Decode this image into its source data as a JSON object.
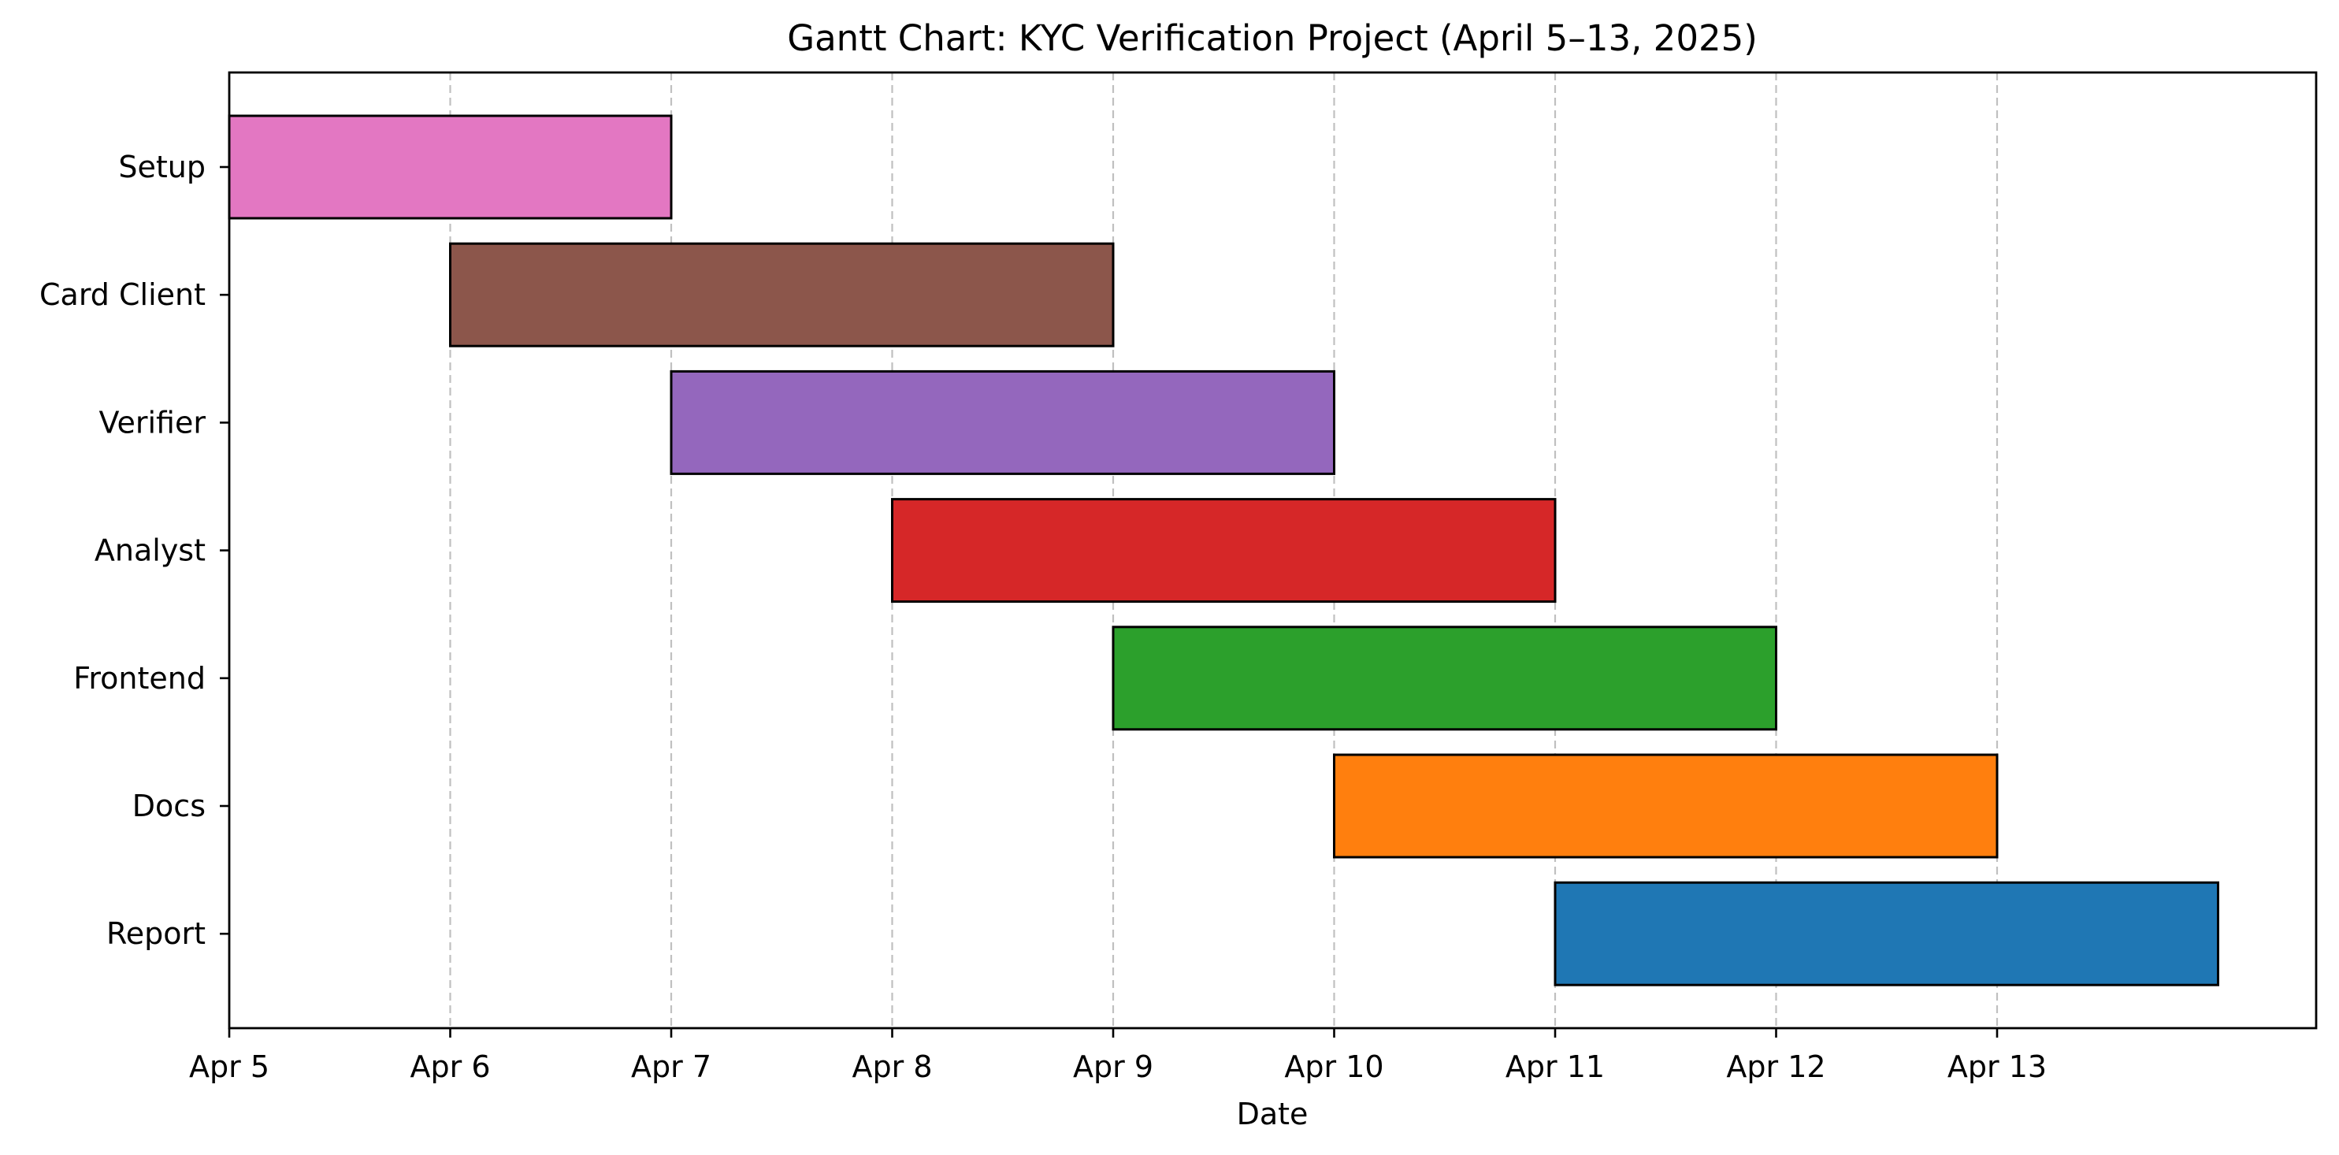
{
  "chart_data": {
    "type": "gantt",
    "title": "Gantt Chart: KYC Verification Project (April 5–13, 2025)",
    "xlabel": "Date",
    "ylabel": "",
    "x_ticks": [
      "Apr 5",
      "Apr 6",
      "Apr 7",
      "Apr 8",
      "Apr 9",
      "Apr 10",
      "Apr 11",
      "Apr 12",
      "Apr 13"
    ],
    "xlim": [
      "2025-04-05",
      "2025-04-15T11:00"
    ],
    "grid": "vertical dashed at day ticks",
    "tasks": [
      {
        "name": "Setup",
        "start": "2025-04-05",
        "end": "2025-04-07",
        "color": "#e377c2"
      },
      {
        "name": "Card Client",
        "start": "2025-04-06",
        "end": "2025-04-09",
        "color": "#8c564b"
      },
      {
        "name": "Verifier",
        "start": "2025-04-07",
        "end": "2025-04-10",
        "color": "#9467bd"
      },
      {
        "name": "Analyst",
        "start": "2025-04-08",
        "end": "2025-04-11",
        "color": "#d62728"
      },
      {
        "name": "Frontend",
        "start": "2025-04-09",
        "end": "2025-04-12",
        "color": "#2ca02c"
      },
      {
        "name": "Docs",
        "start": "2025-04-10",
        "end": "2025-04-13",
        "color": "#ff7f0e"
      },
      {
        "name": "Report",
        "start": "2025-04-11",
        "end": "2025-04-14",
        "color": "#1f77b4"
      }
    ]
  }
}
